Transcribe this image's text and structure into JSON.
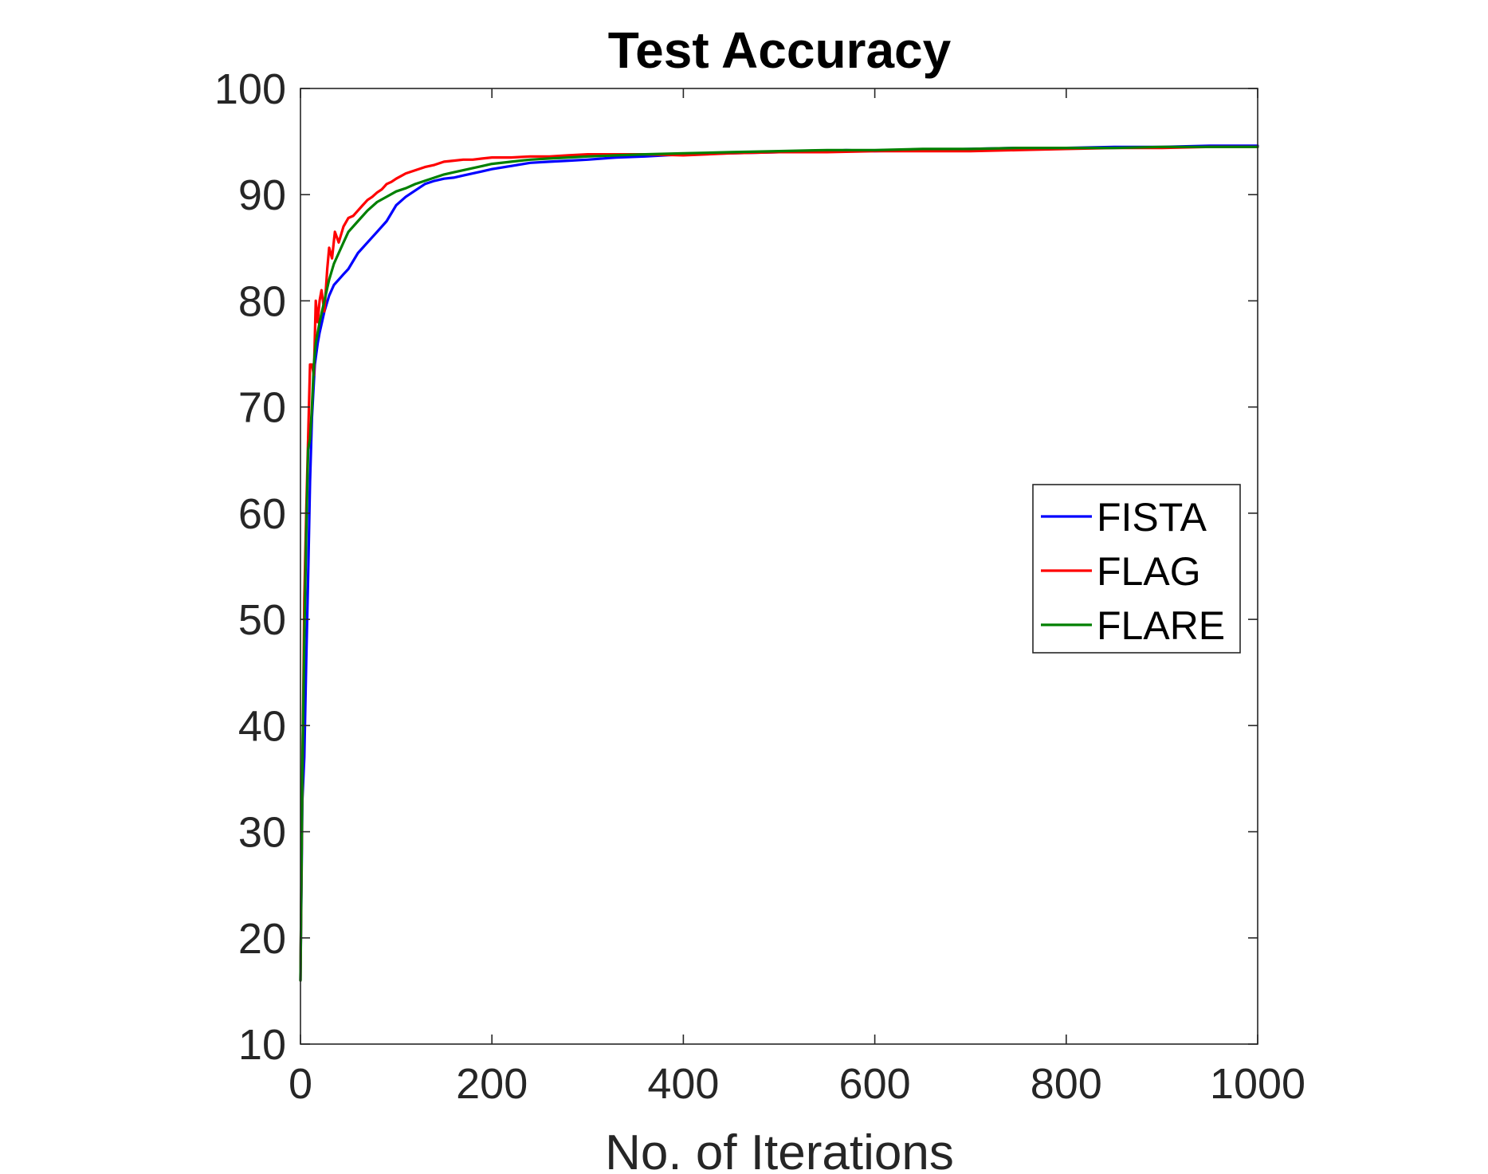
{
  "chart_data": {
    "type": "line",
    "title": "Test Accuracy",
    "xlabel": "No. of Iterations",
    "ylabel": "",
    "xlim": [
      0,
      1000
    ],
    "ylim": [
      10,
      100
    ],
    "xticks": [
      0,
      200,
      400,
      600,
      800,
      1000
    ],
    "yticks": [
      10,
      20,
      30,
      40,
      50,
      60,
      70,
      80,
      90,
      100
    ],
    "legend_position": "right",
    "grid": false,
    "series": [
      {
        "name": "FISTA",
        "color": "#0000ff",
        "x": [
          0,
          2,
          4,
          6,
          8,
          10,
          12,
          15,
          18,
          20,
          25,
          30,
          35,
          40,
          45,
          50,
          60,
          70,
          80,
          90,
          100,
          110,
          120,
          130,
          140,
          150,
          160,
          170,
          180,
          190,
          200,
          220,
          240,
          260,
          280,
          300,
          330,
          360,
          400,
          450,
          500,
          550,
          570,
          600,
          650,
          700,
          750,
          800,
          850,
          900,
          950,
          1000
        ],
        "y": [
          16,
          33,
          37,
          46,
          54,
          63,
          69,
          74,
          76,
          77,
          79,
          80.5,
          81.5,
          82,
          82.5,
          83,
          84.5,
          85.5,
          86.5,
          87.5,
          89,
          89.8,
          90.4,
          91,
          91.3,
          91.5,
          91.6,
          91.8,
          92,
          92.2,
          92.4,
          92.7,
          93,
          93.1,
          93.2,
          93.3,
          93.5,
          93.6,
          93.8,
          93.9,
          94,
          94.1,
          94.2,
          94.1,
          94.2,
          94.3,
          94.4,
          94.4,
          94.5,
          94.5,
          94.6,
          94.6
        ]
      },
      {
        "name": "FLAG",
        "color": "#ff0000",
        "x": [
          0,
          2,
          4,
          6,
          8,
          10,
          12,
          14,
          16,
          18,
          20,
          22,
          25,
          28,
          30,
          33,
          36,
          40,
          45,
          50,
          55,
          60,
          65,
          70,
          75,
          80,
          85,
          90,
          95,
          100,
          110,
          120,
          130,
          140,
          150,
          160,
          170,
          180,
          190,
          200,
          220,
          240,
          260,
          280,
          300,
          330,
          360,
          400,
          450,
          500,
          550,
          600,
          650,
          700,
          750,
          800,
          850,
          900,
          950,
          1000
        ],
        "y": [
          16,
          35,
          52,
          60,
          67,
          74,
          74,
          73,
          80,
          78,
          80,
          81,
          79,
          83,
          85,
          84,
          86.5,
          85.5,
          87,
          87.8,
          88,
          88.5,
          89,
          89.5,
          89.8,
          90.2,
          90.5,
          91,
          91.2,
          91.5,
          92,
          92.3,
          92.6,
          92.8,
          93.1,
          93.2,
          93.3,
          93.3,
          93.4,
          93.5,
          93.5,
          93.6,
          93.6,
          93.7,
          93.8,
          93.8,
          93.8,
          93.7,
          93.9,
          94,
          94,
          94.1,
          94.1,
          94.1,
          94.2,
          94.3,
          94.4,
          94.4,
          94.5,
          94.5
        ]
      },
      {
        "name": "FLARE",
        "color": "#008000",
        "x": [
          0,
          2,
          4,
          6,
          8,
          10,
          12,
          14,
          16,
          18,
          20,
          25,
          30,
          35,
          40,
          45,
          50,
          60,
          70,
          80,
          90,
          100,
          110,
          120,
          130,
          140,
          150,
          160,
          170,
          180,
          190,
          200,
          220,
          240,
          260,
          280,
          300,
          330,
          360,
          400,
          450,
          500,
          550,
          600,
          650,
          700,
          750,
          800,
          850,
          900,
          950,
          1000
        ],
        "y": [
          16,
          36,
          48,
          58,
          66,
          67,
          70,
          74,
          76,
          77,
          78,
          80,
          82,
          83.5,
          84.5,
          85.5,
          86.5,
          87.5,
          88.5,
          89.3,
          89.8,
          90.3,
          90.6,
          91,
          91.3,
          91.6,
          91.9,
          92.1,
          92.3,
          92.5,
          92.7,
          92.9,
          93.1,
          93.3,
          93.4,
          93.5,
          93.6,
          93.7,
          93.8,
          93.9,
          94,
          94.1,
          94.2,
          94.2,
          94.3,
          94.3,
          94.4,
          94.4,
          94.4,
          94.5,
          94.5,
          94.5
        ]
      }
    ]
  }
}
